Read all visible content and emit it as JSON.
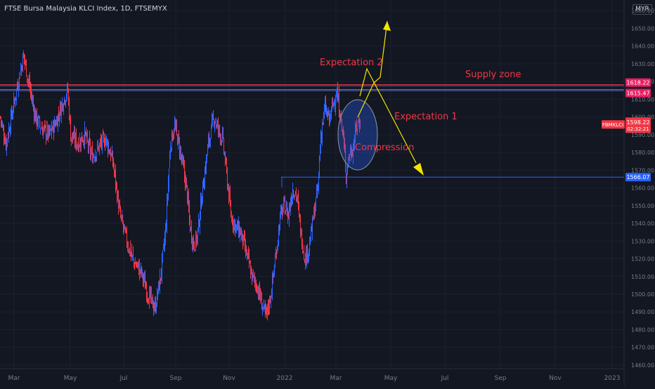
{
  "header": {
    "title": "FTSE Bursa Malaysia KLCI Index, 1D, FTSEMYX",
    "currency": "MYR"
  },
  "colors": {
    "background": "#131722",
    "up": "#2962ff",
    "down": "#f23645",
    "annotation_text": "#f23645",
    "arrow": "#f5e400",
    "support_line": "#2962ff",
    "supply_lines": "#f23645",
    "axis_text": "#787b86"
  },
  "chart_data": {
    "type": "candlestick",
    "title": "FTSE Bursa Malaysia KLCI Index, 1D, FTSEMYX",
    "x_labels": [
      "Mar",
      "May",
      "Jul",
      "Sep",
      "Nov",
      "2022",
      "Mar",
      "May",
      "Jul",
      "Sep",
      "Nov",
      "2023"
    ],
    "y_ticks": [
      1460,
      1470,
      1480,
      1490,
      1500,
      1510,
      1520,
      1530,
      1540,
      1550,
      1560,
      1570,
      1580,
      1590,
      1600,
      1610,
      1620,
      1630,
      1640,
      1650,
      1660
    ],
    "ylim": [
      1458,
      1666
    ],
    "close_series": [
      [
        0,
        1600
      ],
      [
        8,
        1585
      ],
      [
        18,
        1605
      ],
      [
        28,
        1625
      ],
      [
        33,
        1635
      ],
      [
        40,
        1620
      ],
      [
        50,
        1600
      ],
      [
        60,
        1593
      ],
      [
        70,
        1590
      ],
      [
        80,
        1598
      ],
      [
        90,
        1610
      ],
      [
        96,
        1615
      ],
      [
        100,
        1590
      ],
      [
        110,
        1585
      ],
      [
        120,
        1590
      ],
      [
        130,
        1578
      ],
      [
        140,
        1583
      ],
      [
        150,
        1588
      ],
      [
        160,
        1575
      ],
      [
        165,
        1560
      ],
      [
        170,
        1545
      ],
      [
        180,
        1530
      ],
      [
        190,
        1518
      ],
      [
        200,
        1513
      ],
      [
        210,
        1500
      ],
      [
        220,
        1492
      ],
      [
        228,
        1510
      ],
      [
        235,
        1535
      ],
      [
        242,
        1585
      ],
      [
        248,
        1595
      ],
      [
        255,
        1583
      ],
      [
        265,
        1560
      ],
      [
        270,
        1538
      ],
      [
        275,
        1528
      ],
      [
        280,
        1532
      ],
      [
        288,
        1560
      ],
      [
        296,
        1585
      ],
      [
        304,
        1600
      ],
      [
        310,
        1593
      ],
      [
        316,
        1588
      ],
      [
        320,
        1575
      ],
      [
        328,
        1545
      ],
      [
        335,
        1538
      ],
      [
        342,
        1535
      ],
      [
        350,
        1523
      ],
      [
        358,
        1510
      ],
      [
        365,
        1505
      ],
      [
        372,
        1495
      ],
      [
        378,
        1487
      ],
      [
        385,
        1500
      ],
      [
        392,
        1522
      ],
      [
        398,
        1543
      ],
      [
        404,
        1550
      ],
      [
        410,
        1545
      ],
      [
        416,
        1560
      ],
      [
        422,
        1555
      ],
      [
        428,
        1533
      ],
      [
        434,
        1520
      ],
      [
        440,
        1528
      ],
      [
        446,
        1545
      ],
      [
        452,
        1560
      ],
      [
        456,
        1590
      ],
      [
        462,
        1605
      ],
      [
        468,
        1598
      ],
      [
        474,
        1608
      ],
      [
        478,
        1614
      ],
      [
        483,
        1604
      ],
      [
        488,
        1588
      ],
      [
        492,
        1568
      ],
      [
        496,
        1578
      ],
      [
        502,
        1583
      ],
      [
        507,
        1595
      ],
      [
        512,
        1598
      ]
    ],
    "horizontal_levels": [
      {
        "value": 1618.22,
        "label": "1618.22",
        "style": "supply"
      },
      {
        "value": 1615.47,
        "label": "1615.47",
        "style": "supply"
      },
      {
        "value": 1566.07,
        "label": "1566.07",
        "style": "support"
      }
    ],
    "last_price": {
      "symbol": "FBMKLCI",
      "value": "1598.22",
      "countdown": "02:32:21"
    },
    "annotations": [
      {
        "text": "Expectation 2"
      },
      {
        "text": "Supply zone"
      },
      {
        "text": "Expectation 1"
      },
      {
        "text": "Compression"
      }
    ]
  }
}
